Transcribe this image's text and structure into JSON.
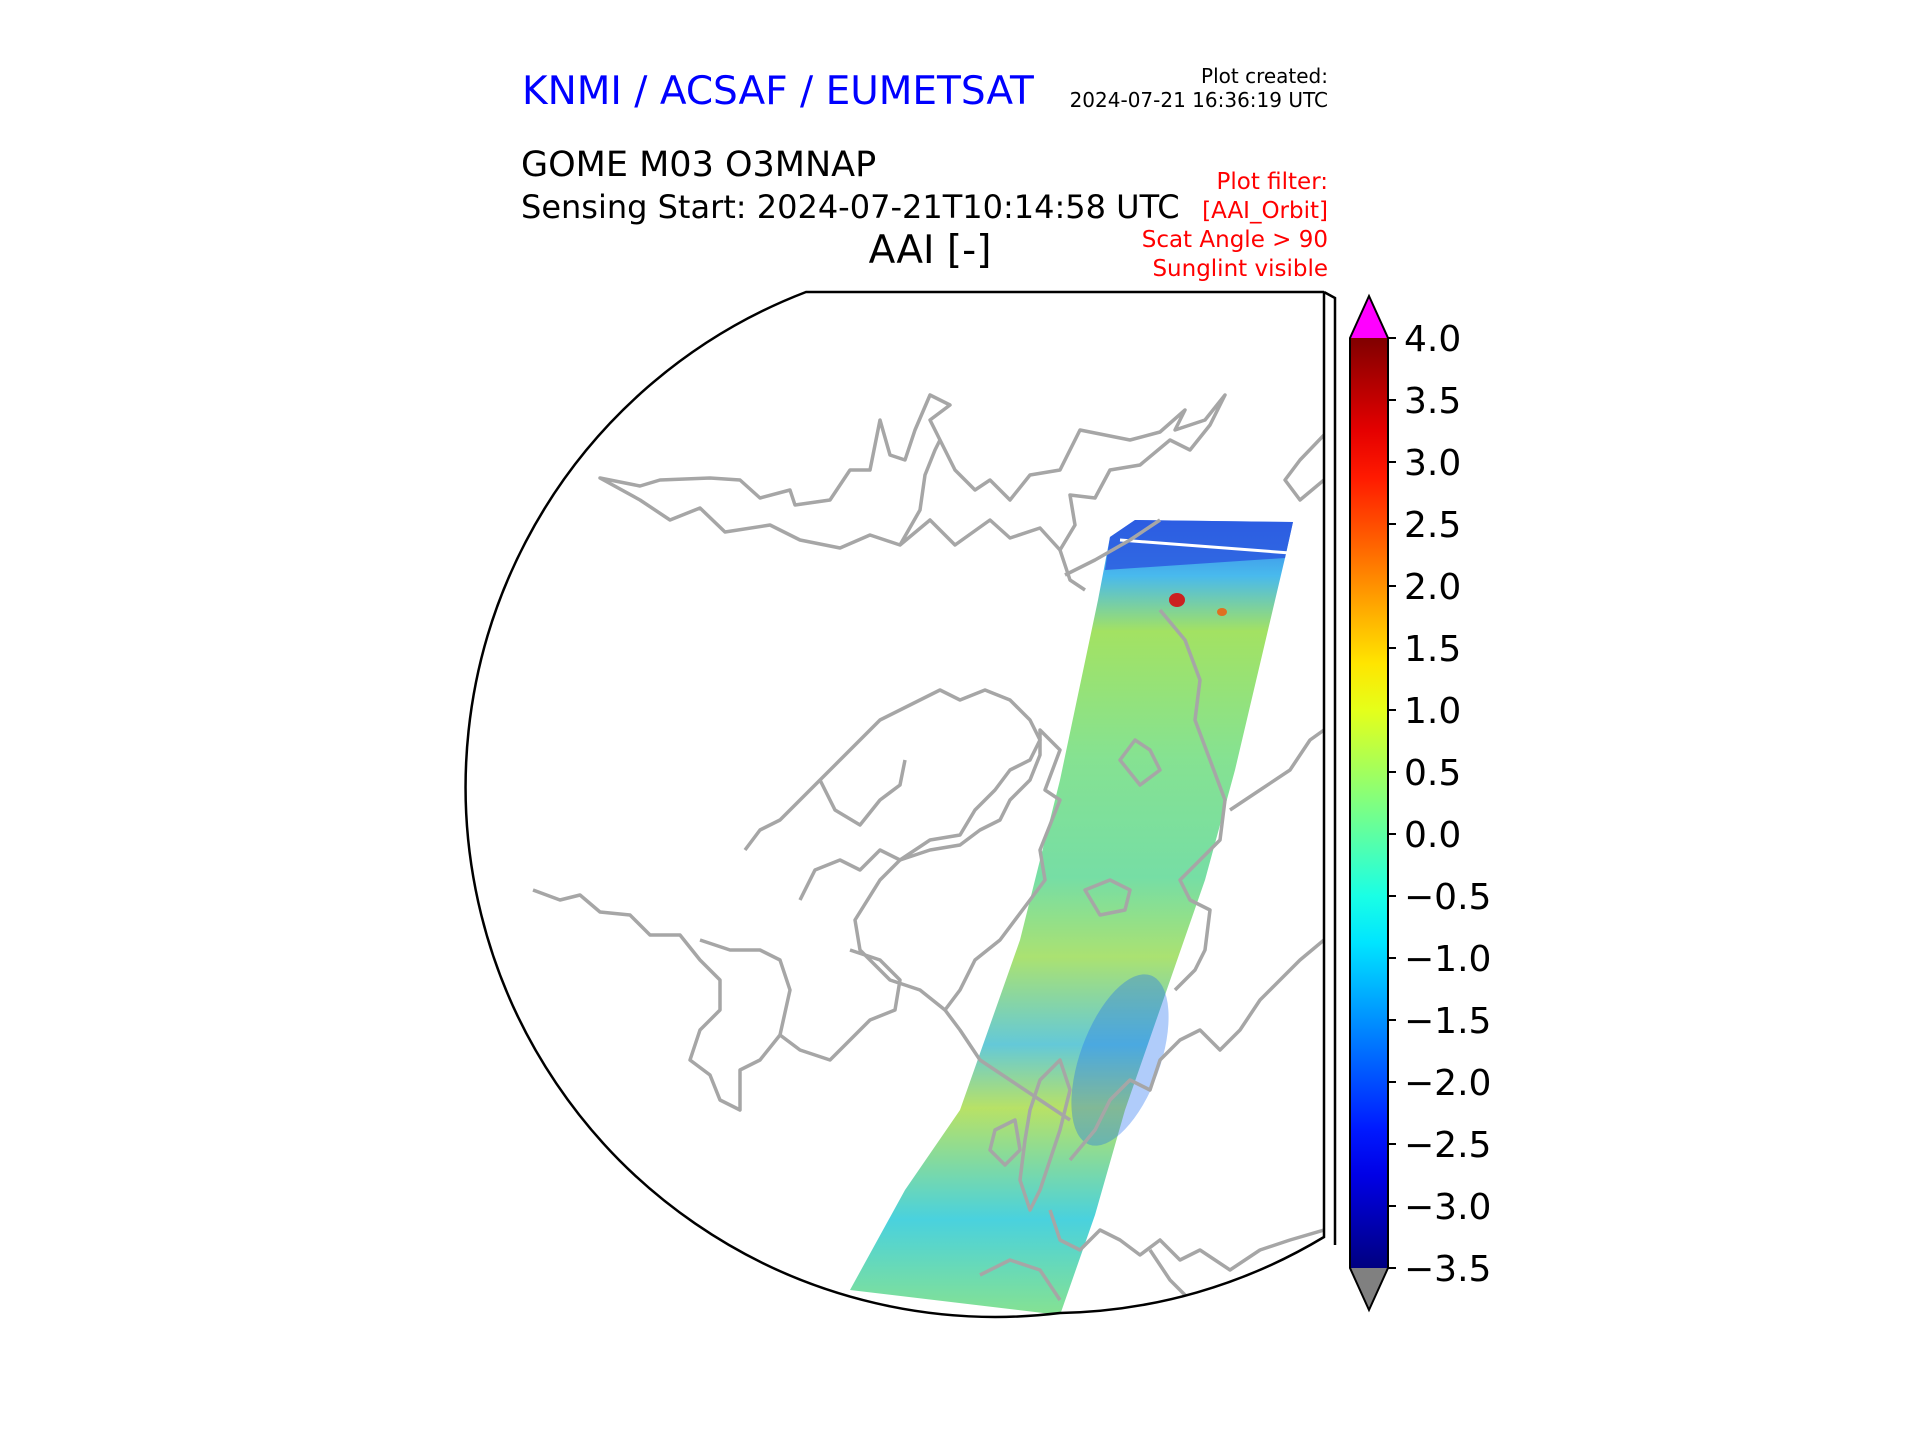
{
  "header": {
    "organization": "KNMI / ACSAF / EUMETSAT",
    "created_label": "Plot created:",
    "created_value": "2024-07-21 16:36:19 UTC"
  },
  "product": {
    "title": "GOME M03 O3MNAP",
    "sensing_start": "Sensing Start: 2024-07-21T10:14:58 UTC"
  },
  "variable_title": "AAI [-]",
  "plot_filter": {
    "lines": [
      "Plot filter:",
      "[AAI_Orbit]",
      "Scat Angle > 90",
      "Sunglint visible"
    ]
  },
  "colorbar": {
    "min": -3.5,
    "max": 4.0,
    "colormap": "jet",
    "over_color": "#ff00ff",
    "under_color": "#808080",
    "tick_values": [
      -3.5,
      -3.0,
      -2.5,
      -2.0,
      -1.5,
      -1.0,
      -0.5,
      0.0,
      0.5,
      1.0,
      1.5,
      2.0,
      2.5,
      3.0,
      3.5,
      4.0
    ],
    "tick_labels": [
      "−3.5",
      "−3.0",
      "−2.5",
      "−2.0",
      "−1.5",
      "−1.0",
      "−0.5",
      "0.0",
      "0.5",
      "1.0",
      "1.5",
      "2.0",
      "2.5",
      "3.0",
      "3.5",
      "4.0"
    ]
  },
  "colors": {
    "header": "#0000ff",
    "filter": "#ff0000",
    "coastline": "#a6a6a6",
    "map_border": "#000000"
  },
  "map": {
    "projection": "north-polar-stereographic",
    "coastlines": "grey"
  }
}
